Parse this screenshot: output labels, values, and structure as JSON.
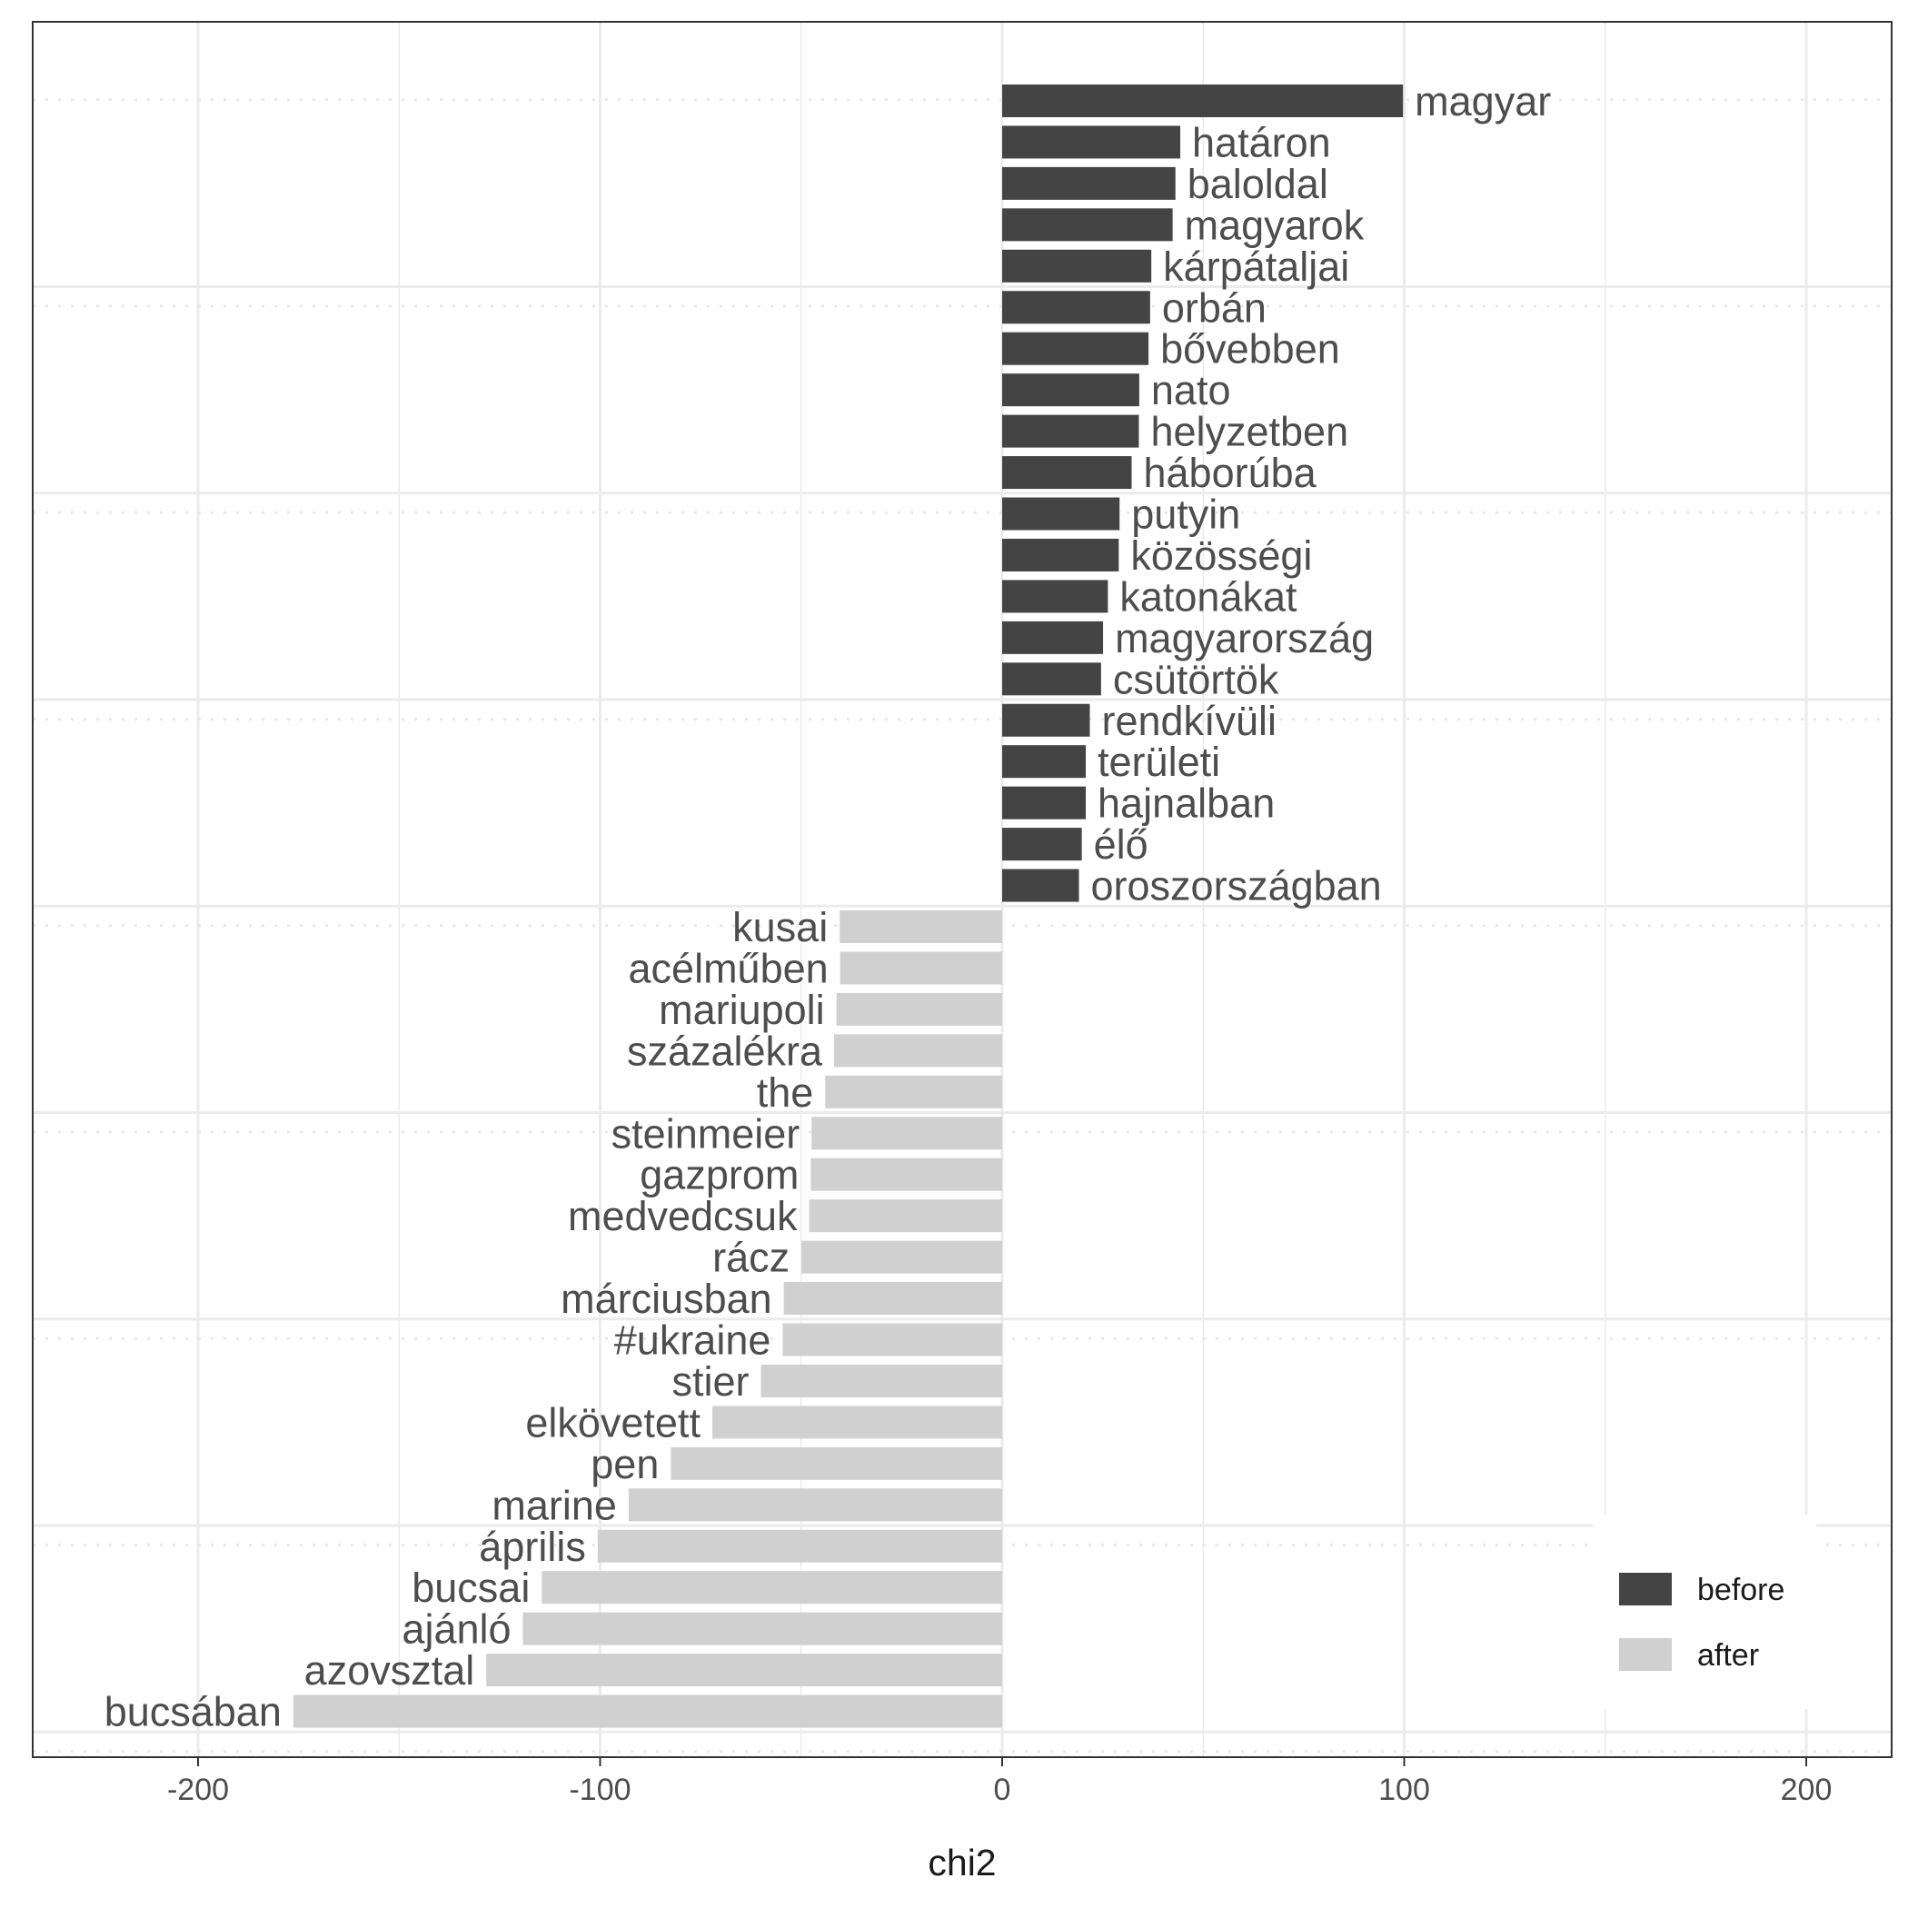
{
  "chart_data": {
    "type": "bar",
    "orientation": "horizontal",
    "xlabel": "chi2",
    "ylabel": "",
    "xlim": [
      -240,
      220
    ],
    "xticks": [
      -200,
      -100,
      0,
      100,
      200
    ],
    "grid": true,
    "legend": {
      "position": "bottom-right",
      "entries": [
        {
          "label": "before",
          "color": "#444444"
        },
        {
          "label": "after",
          "color": "#d0d0d0"
        }
      ]
    },
    "categories": [
      "magyar",
      "határon",
      "baloldal",
      "magyarok",
      "kárpátaljai",
      "orbán",
      "bővebben",
      "nato",
      "helyzetben",
      "háborúba",
      "putyin",
      "közösségi",
      "katonákat",
      "magyarország",
      "csütörtök",
      "rendkívüli",
      "területi",
      "hajnalban",
      "élő",
      "oroszországban",
      "kusai",
      "acélműben",
      "mariupoli",
      "százalékra",
      "the",
      "steinmeier",
      "gazprom",
      "medvedcsuk",
      "rácz",
      "márciusban",
      "#ukraine",
      "stier",
      "elkövetett",
      "pen",
      "marine",
      "április",
      "bucsai",
      "ajánló",
      "azovsztal",
      "bucsában"
    ],
    "values": [
      99.7,
      44.3,
      43.1,
      42.4,
      37.1,
      36.8,
      36.4,
      34.1,
      34.0,
      32.2,
      29.2,
      29.0,
      26.3,
      25.1,
      24.6,
      21.8,
      20.8,
      20.8,
      19.8,
      19.1,
      -40.4,
      -40.3,
      -41.2,
      -41.8,
      -44.0,
      -47.4,
      -47.6,
      -48.0,
      -49.9,
      -54.3,
      -54.6,
      -60.0,
      -72.1,
      -82.4,
      -92.9,
      -100.6,
      -114.5,
      -119.2,
      -128.3,
      -176.3
    ],
    "groups": [
      "before",
      "before",
      "before",
      "before",
      "before",
      "before",
      "before",
      "before",
      "before",
      "before",
      "before",
      "before",
      "before",
      "before",
      "before",
      "before",
      "before",
      "before",
      "before",
      "before",
      "after",
      "after",
      "after",
      "after",
      "after",
      "after",
      "after",
      "after",
      "after",
      "after",
      "after",
      "after",
      "after",
      "after",
      "after",
      "after",
      "after",
      "after",
      "after",
      "after"
    ]
  }
}
